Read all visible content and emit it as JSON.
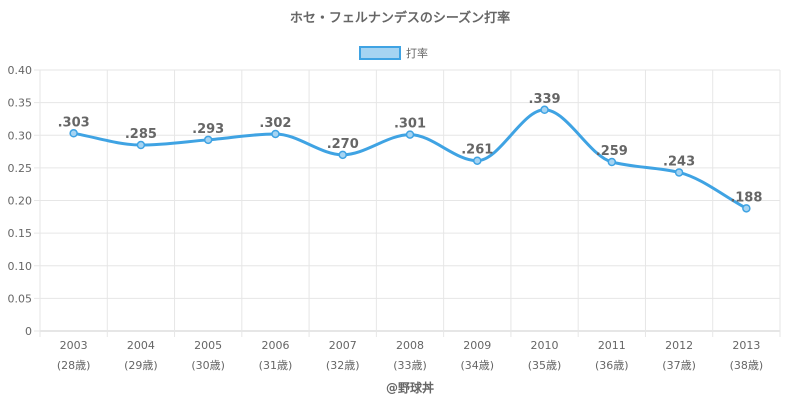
{
  "chart_data": {
    "type": "line",
    "title": "ホセ・フェルナンデスのシーズン打率",
    "categories": [
      "2003",
      "2004",
      "2005",
      "2006",
      "2007",
      "2008",
      "2009",
      "2010",
      "2011",
      "2012",
      "2013"
    ],
    "category_sublabels": [
      "(28歳)",
      "(29歳)",
      "(30歳)",
      "(31歳)",
      "(32歳)",
      "(33歳)",
      "(34歳)",
      "(35歳)",
      "(36歳)",
      "(37歳)",
      "(38歳)"
    ],
    "series": [
      {
        "name": "打率",
        "values": [
          0.303,
          0.285,
          0.293,
          0.302,
          0.27,
          0.301,
          0.261,
          0.339,
          0.259,
          0.243,
          0.188
        ],
        "labels": [
          ".303",
          ".285",
          ".293",
          ".302",
          ".270",
          ".301",
          ".261",
          ".339",
          ".259",
          ".243",
          ".188"
        ]
      }
    ],
    "yticks": [
      "0",
      "0.05",
      "0.10",
      "0.15",
      "0.20",
      "0.25",
      "0.30",
      "0.35",
      "0.40"
    ],
    "ylim": [
      0,
      0.4
    ],
    "grid": true,
    "legend_position": "top-center",
    "line_color": "#3fa3e3",
    "legend_fill_color": "#a6d4f2"
  },
  "credit": "@野球丼"
}
